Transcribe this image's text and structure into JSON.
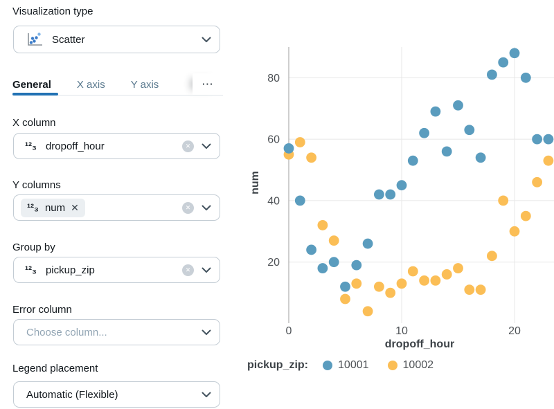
{
  "panel": {
    "viz": {
      "label": "Visualization type",
      "value": "Scatter"
    },
    "tabs": [
      {
        "label": "General",
        "active": true
      },
      {
        "label": "X axis",
        "active": false
      },
      {
        "label": "Y axis",
        "active": false
      }
    ],
    "tabs_overflow": "⋯",
    "number_icon": "¹²₃",
    "icons": {
      "clear": "✕",
      "chip_remove": "✕"
    },
    "fields": [
      {
        "label": "X column",
        "value": "dropoff_hour",
        "clearable": true
      },
      {
        "label": "Y columns",
        "chip": "num",
        "clearable": true
      },
      {
        "label": "Group by",
        "value": "pickup_zip",
        "clearable": true
      },
      {
        "label": "Error column",
        "placeholder": "Choose column...",
        "clearable": false
      },
      {
        "label": "Legend placement",
        "value": "Automatic (Flexible)",
        "clearable": false
      }
    ]
  },
  "chart_data": {
    "type": "scatter",
    "title": "",
    "xlabel": "dropoff_hour",
    "ylabel": "num",
    "legend_title": "pickup_zip:",
    "legend_position": "bottom",
    "grid": true,
    "xlim": [
      -0.7,
      23.5
    ],
    "ylim": [
      0,
      92
    ],
    "xticks": [
      0,
      10,
      20
    ],
    "yticks": [
      20,
      40,
      60,
      80
    ],
    "series": [
      {
        "name": "10001",
        "color": "#5A9CBE",
        "points": [
          [
            0,
            57
          ],
          [
            1,
            40
          ],
          [
            2,
            24
          ],
          [
            3,
            18
          ],
          [
            4,
            20
          ],
          [
            5,
            12
          ],
          [
            6,
            19
          ],
          [
            7,
            26
          ],
          [
            8,
            42
          ],
          [
            9,
            42
          ],
          [
            10,
            45
          ],
          [
            11,
            53
          ],
          [
            12,
            62
          ],
          [
            13,
            69
          ],
          [
            14,
            56
          ],
          [
            15,
            71
          ],
          [
            16,
            63
          ],
          [
            17,
            54
          ],
          [
            18,
            81
          ],
          [
            19,
            85
          ],
          [
            20,
            88
          ],
          [
            21,
            80
          ],
          [
            22,
            60
          ],
          [
            23,
            60
          ]
        ]
      },
      {
        "name": "10002",
        "color": "#FBBE56",
        "points": [
          [
            0,
            55
          ],
          [
            1,
            59
          ],
          [
            2,
            54
          ],
          [
            3,
            32
          ],
          [
            4,
            27
          ],
          [
            5,
            8
          ],
          [
            6,
            13
          ],
          [
            7,
            4
          ],
          [
            8,
            12
          ],
          [
            9,
            10
          ],
          [
            10,
            13
          ],
          [
            11,
            17
          ],
          [
            12,
            14
          ],
          [
            13,
            14
          ],
          [
            14,
            16
          ],
          [
            15,
            18
          ],
          [
            16,
            11
          ],
          [
            17,
            11
          ],
          [
            18,
            22
          ],
          [
            19,
            40
          ],
          [
            20,
            30
          ],
          [
            21,
            35
          ],
          [
            22,
            46
          ],
          [
            23,
            53
          ]
        ]
      }
    ]
  }
}
